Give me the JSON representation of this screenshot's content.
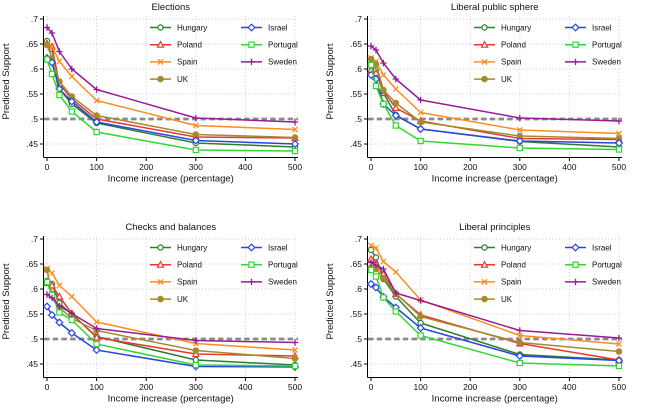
{
  "figure": {
    "background": "#ffffff",
    "grid_color": "#c9c9c9",
    "axis_color": "#000000",
    "text_color": "#111111",
    "ref_line_color": "#8a8a8a"
  },
  "legend": {
    "columns": [
      [
        "Hungary",
        "Poland",
        "Spain",
        "UK"
      ],
      [
        "Israel",
        "Portugal",
        "Sweden"
      ]
    ]
  },
  "styles": {
    "Hungary": {
      "color": "#2e7d32",
      "marker": "circle_open"
    },
    "Poland": {
      "color": "#e63a2e",
      "marker": "triangle_open"
    },
    "Spain": {
      "color": "#ff8c1f",
      "marker": "x_cross"
    },
    "UK": {
      "color": "#a58a2e",
      "marker": "circle_filled"
    },
    "Israel": {
      "color": "#2b45e0",
      "marker": "diamond_open"
    },
    "Portugal": {
      "color": "#33d633",
      "marker": "square_open"
    },
    "Sweden": {
      "color": "#951d95",
      "marker": "plus"
    }
  },
  "chart_data": [
    {
      "type": "line",
      "title": "Elections",
      "xlabel": "Income increase (percentage)",
      "ylabel": "Predicted Support",
      "x": [
        0,
        10,
        25,
        50,
        100,
        300,
        500
      ],
      "xlim": [
        0,
        500
      ],
      "ylim": [
        0.43,
        0.71
      ],
      "x_ticks": [
        0,
        100,
        200,
        300,
        400,
        500
      ],
      "x_tick_labels": [
        "0",
        "100",
        "200",
        "300",
        "400",
        "500"
      ],
      "y_ticks": [
        0.7,
        0.65,
        0.6,
        0.55,
        0.5,
        0.45
      ],
      "y_tick_labels": [
        ".7",
        ".65",
        ".6",
        ".55",
        ".5",
        ".45"
      ],
      "ref_line": 0.5,
      "grid": true,
      "legend_position": "top-right",
      "series": [
        {
          "name": "Hungary",
          "values": [
            0.656,
            0.64,
            0.56,
            0.53,
            0.492,
            0.452,
            0.444
          ]
        },
        {
          "name": "Poland",
          "values": [
            0.651,
            0.645,
            0.57,
            0.54,
            0.5,
            0.464,
            0.462
          ]
        },
        {
          "name": "Spain",
          "values": [
            0.65,
            0.645,
            0.615,
            0.585,
            0.537,
            0.487,
            0.479
          ]
        },
        {
          "name": "UK",
          "values": [
            0.648,
            0.622,
            0.575,
            0.545,
            0.507,
            0.469,
            0.463
          ]
        },
        {
          "name": "Israel",
          "values": [
            0.622,
            0.613,
            0.56,
            0.535,
            0.494,
            0.457,
            0.45
          ]
        },
        {
          "name": "Portugal",
          "values": [
            0.619,
            0.59,
            0.548,
            0.515,
            0.474,
            0.438,
            0.436
          ]
        },
        {
          "name": "Sweden",
          "values": [
            0.683,
            0.672,
            0.635,
            0.6,
            0.559,
            0.502,
            0.494
          ]
        }
      ]
    },
    {
      "type": "line",
      "title": "Liberal public sphere",
      "xlabel": "Income increase (percentage)",
      "ylabel": "Predicted Support",
      "x": [
        0,
        10,
        25,
        50,
        100,
        300,
        500
      ],
      "xlim": [
        0,
        500
      ],
      "ylim": [
        0.43,
        0.71
      ],
      "x_ticks": [
        0,
        100,
        200,
        300,
        400,
        500
      ],
      "x_tick_labels": [
        "0",
        "100",
        "200",
        "300",
        "400",
        "500"
      ],
      "y_ticks": [
        0.7,
        0.65,
        0.6,
        0.55,
        0.5,
        0.45
      ],
      "y_tick_labels": [
        ".7",
        ".65",
        ".6",
        ".55",
        ".5",
        ".45"
      ],
      "ref_line": 0.5,
      "grid": true,
      "legend_position": "top-right",
      "series": [
        {
          "name": "Hungary",
          "values": [
            0.606,
            0.597,
            0.552,
            0.508,
            0.48,
            0.455,
            0.444
          ]
        },
        {
          "name": "Poland",
          "values": [
            0.598,
            0.592,
            0.556,
            0.522,
            0.496,
            0.461,
            0.459
          ]
        },
        {
          "name": "Spain",
          "values": [
            0.622,
            0.615,
            0.588,
            0.56,
            0.513,
            0.478,
            0.471
          ]
        },
        {
          "name": "UK",
          "values": [
            0.62,
            0.61,
            0.558,
            0.532,
            0.494,
            0.466,
            0.461
          ]
        },
        {
          "name": "Israel",
          "values": [
            0.588,
            0.58,
            0.53,
            0.507,
            0.48,
            0.456,
            0.452
          ]
        },
        {
          "name": "Portugal",
          "values": [
            0.608,
            0.566,
            0.53,
            0.487,
            0.456,
            0.442,
            0.439
          ]
        },
        {
          "name": "Sweden",
          "values": [
            0.646,
            0.638,
            0.612,
            0.58,
            0.538,
            0.502,
            0.496
          ]
        }
      ]
    },
    {
      "type": "line",
      "title": "Checks and balances",
      "xlabel": "Income increase (percentage)",
      "ylabel": "Predicted Support",
      "x": [
        0,
        10,
        25,
        50,
        100,
        300,
        500
      ],
      "xlim": [
        0,
        500
      ],
      "ylim": [
        0.43,
        0.71
      ],
      "x_ticks": [
        0,
        100,
        200,
        300,
        400,
        500
      ],
      "x_tick_labels": [
        "0",
        "100",
        "200",
        "300",
        "400",
        "500"
      ],
      "y_ticks": [
        0.7,
        0.65,
        0.6,
        0.55,
        0.5,
        0.45
      ],
      "y_tick_labels": [
        ".7",
        ".65",
        ".6",
        ".55",
        ".5",
        ".45"
      ],
      "ref_line": 0.5,
      "grid": true,
      "legend_position": "top-right",
      "series": [
        {
          "name": "Hungary",
          "values": [
            0.616,
            0.61,
            0.572,
            0.549,
            0.505,
            0.458,
            0.448
          ]
        },
        {
          "name": "Poland",
          "values": [
            0.612,
            0.607,
            0.585,
            0.551,
            0.503,
            0.47,
            0.466
          ]
        },
        {
          "name": "Spain",
          "values": [
            0.641,
            0.632,
            0.607,
            0.585,
            0.534,
            0.491,
            0.478
          ]
        },
        {
          "name": "UK",
          "values": [
            0.638,
            0.59,
            0.563,
            0.541,
            0.517,
            0.477,
            0.461
          ]
        },
        {
          "name": "Israel",
          "values": [
            0.565,
            0.548,
            0.533,
            0.512,
            0.478,
            0.445,
            0.444
          ]
        },
        {
          "name": "Portugal",
          "values": [
            0.614,
            0.588,
            0.553,
            0.538,
            0.49,
            0.448,
            0.446
          ]
        },
        {
          "name": "Sweden",
          "values": [
            0.589,
            0.582,
            0.566,
            0.551,
            0.521,
            0.497,
            0.493
          ]
        }
      ]
    },
    {
      "type": "line",
      "title": "Liberal principles",
      "xlabel": "Income increase (percentage)",
      "ylabel": "Predicted Support",
      "x": [
        0,
        10,
        25,
        50,
        100,
        300,
        500
      ],
      "xlim": [
        0,
        500
      ],
      "ylim": [
        0.43,
        0.71
      ],
      "x_ticks": [
        0,
        100,
        200,
        300,
        400,
        500
      ],
      "x_tick_labels": [
        "0",
        "100",
        "200",
        "300",
        "400",
        "500"
      ],
      "y_ticks": [
        0.7,
        0.65,
        0.6,
        0.55,
        0.5,
        0.45
      ],
      "y_tick_labels": [
        ".7",
        ".65",
        ".6",
        ".55",
        ".5",
        ".45"
      ],
      "ref_line": 0.5,
      "grid": true,
      "legend_position": "top-right",
      "series": [
        {
          "name": "Hungary",
          "values": [
            0.678,
            0.663,
            0.62,
            0.585,
            0.532,
            0.469,
            0.458
          ]
        },
        {
          "name": "Poland",
          "values": [
            0.66,
            0.652,
            0.63,
            0.59,
            0.548,
            0.491,
            0.458
          ]
        },
        {
          "name": "Spain",
          "values": [
            0.687,
            0.682,
            0.655,
            0.634,
            0.578,
            0.507,
            0.49
          ]
        },
        {
          "name": "UK",
          "values": [
            0.643,
            0.64,
            0.622,
            0.591,
            0.545,
            0.493,
            0.475
          ]
        },
        {
          "name": "Israel",
          "values": [
            0.61,
            0.603,
            0.584,
            0.563,
            0.522,
            0.466,
            0.457
          ]
        },
        {
          "name": "Portugal",
          "values": [
            0.638,
            0.625,
            0.583,
            0.555,
            0.507,
            0.452,
            0.446
          ]
        },
        {
          "name": "Sweden",
          "values": [
            0.653,
            0.648,
            0.64,
            0.592,
            0.577,
            0.517,
            0.502
          ]
        }
      ]
    }
  ]
}
